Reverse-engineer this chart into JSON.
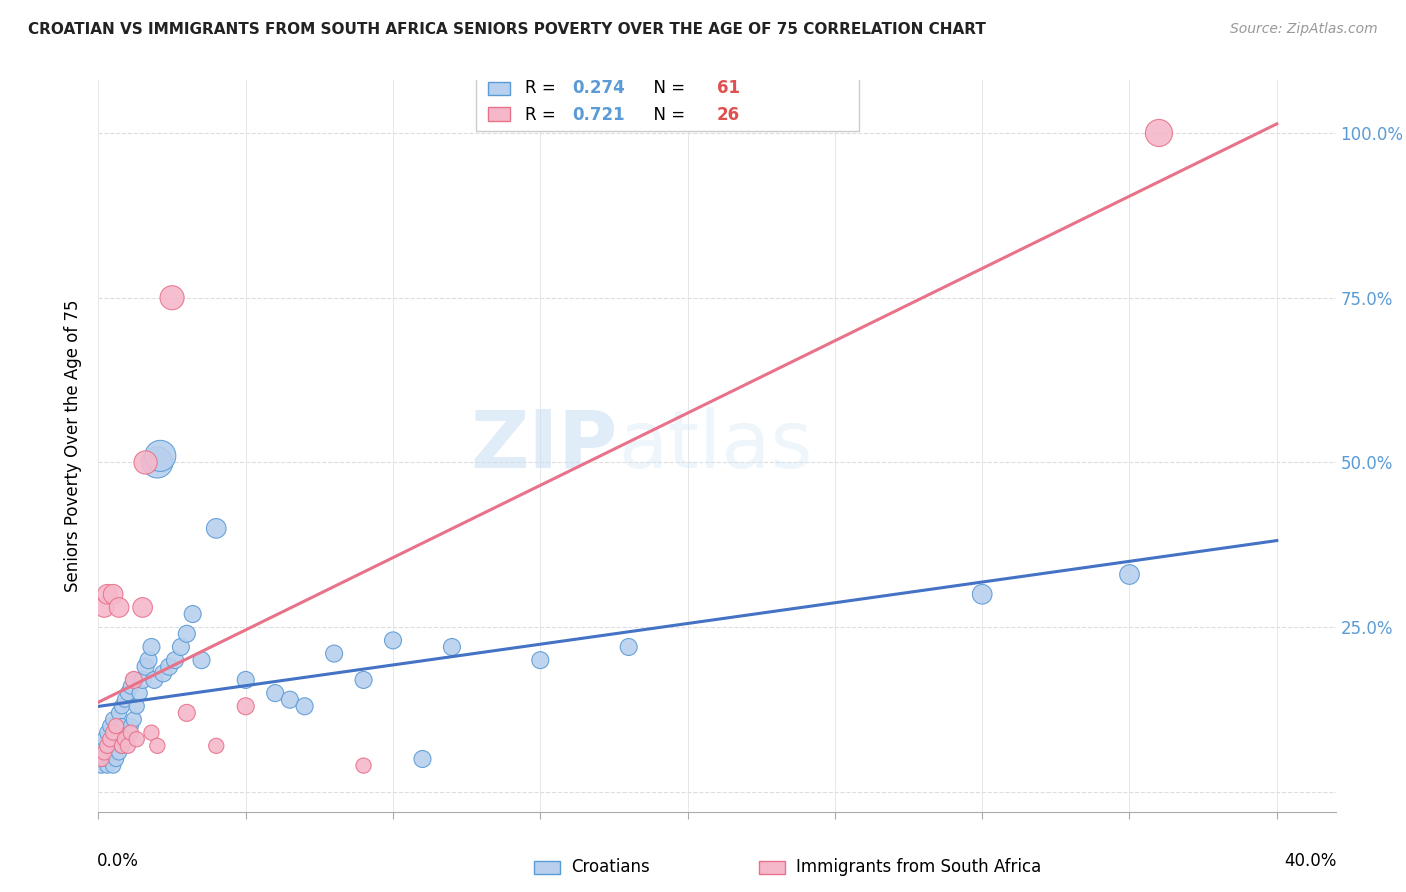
{
  "title": "CROATIAN VS IMMIGRANTS FROM SOUTH AFRICA SENIORS POVERTY OVER THE AGE OF 75 CORRELATION CHART",
  "source": "Source: ZipAtlas.com",
  "ylabel": "Seniors Poverty Over the Age of 75",
  "ytick_values": [
    0.0,
    0.25,
    0.5,
    0.75,
    1.0
  ],
  "xlim": [
    0.0,
    0.42
  ],
  "ylim": [
    -0.03,
    1.08
  ],
  "watermark_zip": "ZIP",
  "watermark_atlas": "atlas",
  "legend_blue_r": "0.274",
  "legend_blue_n": "61",
  "legend_pink_r": "0.721",
  "legend_pink_n": "26",
  "croatian_color": "#b8d0ed",
  "sa_color": "#f5b8cb",
  "croatian_edge": "#5b9bd5",
  "sa_edge": "#e8728a",
  "line_blue": "#4472c4",
  "line_pink": "#e8728a",
  "grid_color": "#dddddd",
  "title_color": "#222222",
  "source_color": "#999999",
  "right_axis_color": "#5b9bd5",
  "croatians_x": [
    0.001,
    0.001,
    0.002,
    0.002,
    0.002,
    0.003,
    0.003,
    0.003,
    0.004,
    0.004,
    0.004,
    0.005,
    0.005,
    0.005,
    0.005,
    0.006,
    0.006,
    0.007,
    0.007,
    0.007,
    0.008,
    0.008,
    0.008,
    0.009,
    0.009,
    0.01,
    0.01,
    0.011,
    0.011,
    0.012,
    0.012,
    0.013,
    0.014,
    0.015,
    0.016,
    0.017,
    0.018,
    0.019,
    0.02,
    0.021,
    0.022,
    0.024,
    0.026,
    0.028,
    0.03,
    0.032,
    0.035,
    0.04,
    0.05,
    0.06,
    0.065,
    0.07,
    0.08,
    0.09,
    0.1,
    0.11,
    0.12,
    0.15,
    0.18,
    0.3,
    0.35
  ],
  "croatians_y": [
    0.04,
    0.06,
    0.05,
    0.07,
    0.08,
    0.04,
    0.06,
    0.09,
    0.05,
    0.07,
    0.1,
    0.04,
    0.06,
    0.08,
    0.11,
    0.05,
    0.09,
    0.06,
    0.09,
    0.12,
    0.07,
    0.1,
    0.13,
    0.08,
    0.14,
    0.09,
    0.15,
    0.1,
    0.16,
    0.11,
    0.17,
    0.13,
    0.15,
    0.17,
    0.19,
    0.2,
    0.22,
    0.17,
    0.5,
    0.51,
    0.18,
    0.19,
    0.2,
    0.22,
    0.24,
    0.27,
    0.2,
    0.4,
    0.17,
    0.15,
    0.14,
    0.13,
    0.21,
    0.17,
    0.23,
    0.05,
    0.22,
    0.2,
    0.22,
    0.3,
    0.33
  ],
  "sa_x": [
    0.001,
    0.002,
    0.002,
    0.003,
    0.003,
    0.004,
    0.005,
    0.005,
    0.006,
    0.007,
    0.008,
    0.009,
    0.01,
    0.011,
    0.012,
    0.013,
    0.015,
    0.016,
    0.018,
    0.02,
    0.025,
    0.03,
    0.04,
    0.05,
    0.09,
    0.36
  ],
  "sa_y": [
    0.05,
    0.06,
    0.28,
    0.07,
    0.3,
    0.08,
    0.3,
    0.09,
    0.1,
    0.28,
    0.07,
    0.08,
    0.07,
    0.09,
    0.17,
    0.08,
    0.28,
    0.5,
    0.09,
    0.07,
    0.75,
    0.12,
    0.07,
    0.13,
    0.04,
    1.0
  ],
  "croatian_sizes": [
    120,
    120,
    120,
    120,
    120,
    120,
    120,
    120,
    120,
    120,
    120,
    120,
    120,
    120,
    120,
    120,
    120,
    120,
    120,
    120,
    120,
    120,
    120,
    120,
    120,
    120,
    120,
    120,
    120,
    120,
    120,
    120,
    120,
    150,
    150,
    150,
    150,
    150,
    500,
    500,
    150,
    150,
    150,
    150,
    150,
    150,
    150,
    200,
    150,
    150,
    150,
    150,
    150,
    150,
    150,
    150,
    150,
    150,
    150,
    200,
    200
  ],
  "sa_sizes": [
    120,
    120,
    200,
    120,
    200,
    120,
    200,
    120,
    120,
    200,
    120,
    120,
    120,
    120,
    150,
    120,
    200,
    280,
    120,
    120,
    300,
    150,
    120,
    150,
    120,
    380
  ]
}
